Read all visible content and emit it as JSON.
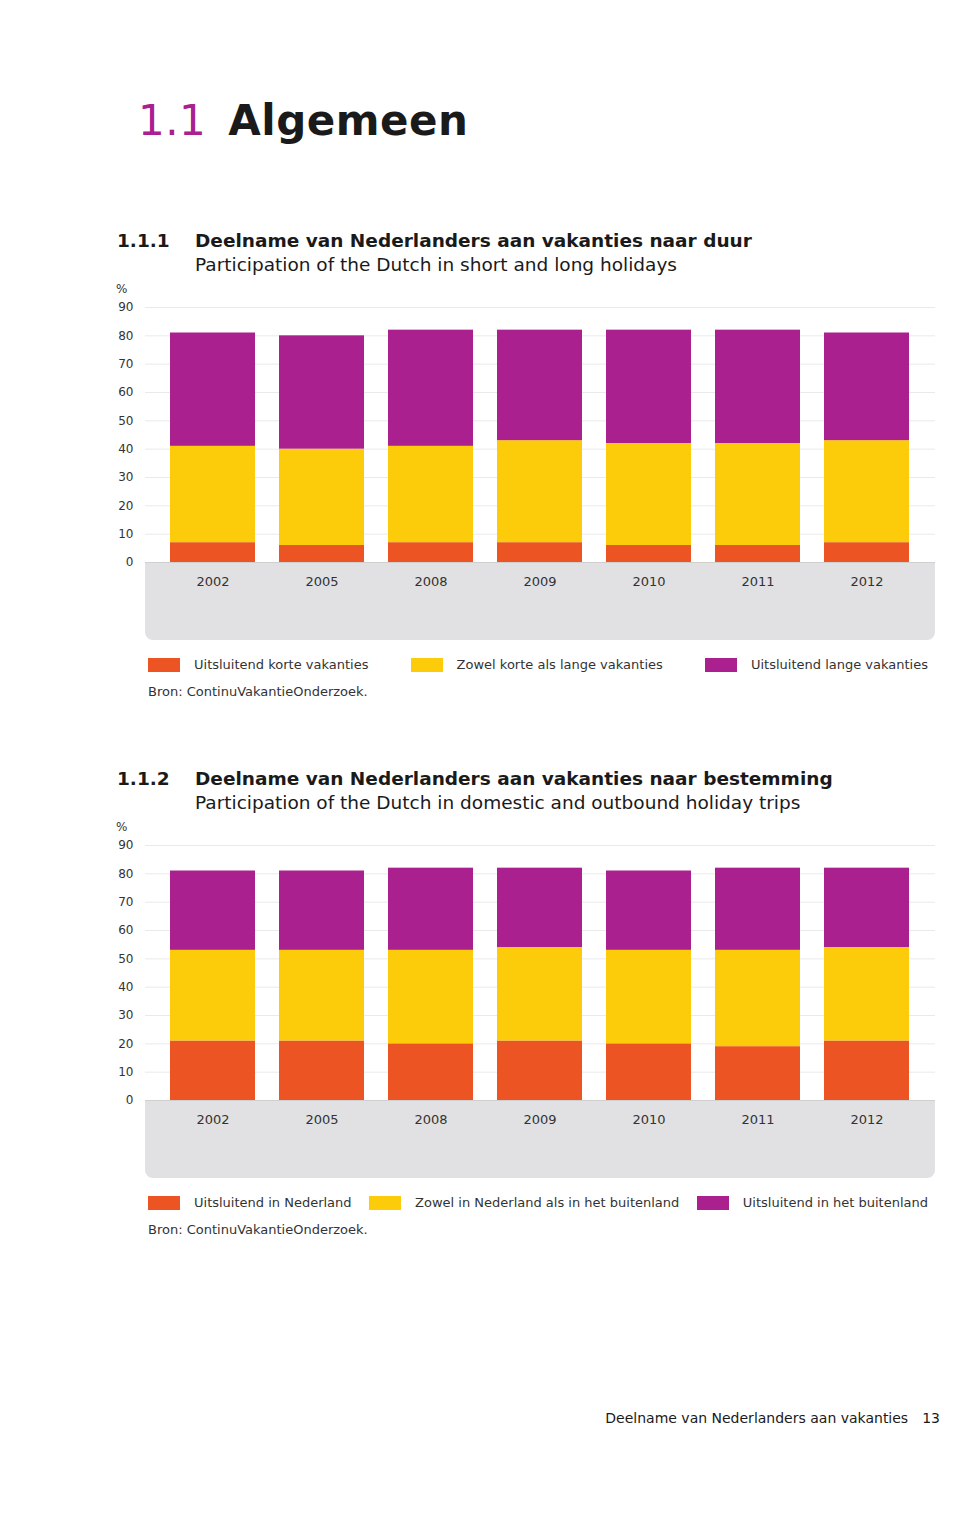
{
  "section": {
    "number": "1.1",
    "title": "Algemeen"
  },
  "footer": {
    "text": "Deelname van Nederlanders aan vakanties",
    "page": "13"
  },
  "chart_data": [
    {
      "type": "bar",
      "stacked": true,
      "grid": true,
      "number": "1.1.1",
      "title": "Deelname van Nederlanders aan vakanties naar duur",
      "subtitle": "Participation of the Dutch in short and long holidays",
      "y_label": "%",
      "categories": [
        "2002",
        "2005",
        "2008",
        "2009",
        "2010",
        "2011",
        "2012"
      ],
      "series": [
        {
          "name": "Uitsluitend korte vakanties",
          "color": "#ec5424",
          "values": [
            7,
            6,
            7,
            7,
            6,
            6,
            7
          ]
        },
        {
          "name": "Zowel korte als lange vakanties",
          "color": "#fccc0a",
          "values": [
            34,
            34,
            34,
            36,
            36,
            36,
            36
          ]
        },
        {
          "name": "Uitsluitend lange vakanties",
          "color": "#a9208e",
          "values": [
            40,
            40,
            41,
            39,
            40,
            40,
            38
          ]
        }
      ],
      "ylim": [
        0,
        90
      ],
      "yticks": [
        0,
        10,
        20,
        30,
        40,
        50,
        60,
        70,
        80,
        90
      ],
      "source": "Bron: ContinuVakantieOnderzoek."
    },
    {
      "type": "bar",
      "stacked": true,
      "grid": true,
      "number": "1.1.2",
      "title": "Deelname van Nederlanders aan vakanties naar bestemming",
      "subtitle": "Participation of the Dutch in domestic and outbound holiday trips",
      "y_label": "%",
      "categories": [
        "2002",
        "2005",
        "2008",
        "2009",
        "2010",
        "2011",
        "2012"
      ],
      "series": [
        {
          "name": "Uitsluitend in Nederland",
          "color": "#ec5424",
          "values": [
            21,
            21,
            20,
            21,
            20,
            19,
            21
          ]
        },
        {
          "name": "Zowel in Nederland als in het buitenland",
          "color": "#fccc0a",
          "values": [
            32,
            32,
            33,
            33,
            33,
            34,
            33
          ]
        },
        {
          "name": "Uitsluitend in het buitenland",
          "color": "#a9208e",
          "values": [
            28,
            28,
            29,
            28,
            28,
            29,
            28
          ]
        }
      ],
      "ylim": [
        0,
        90
      ],
      "yticks": [
        0,
        10,
        20,
        30,
        40,
        50,
        60,
        70,
        80,
        90
      ],
      "source": "Bron: ContinuVakantieOnderzoek."
    }
  ]
}
